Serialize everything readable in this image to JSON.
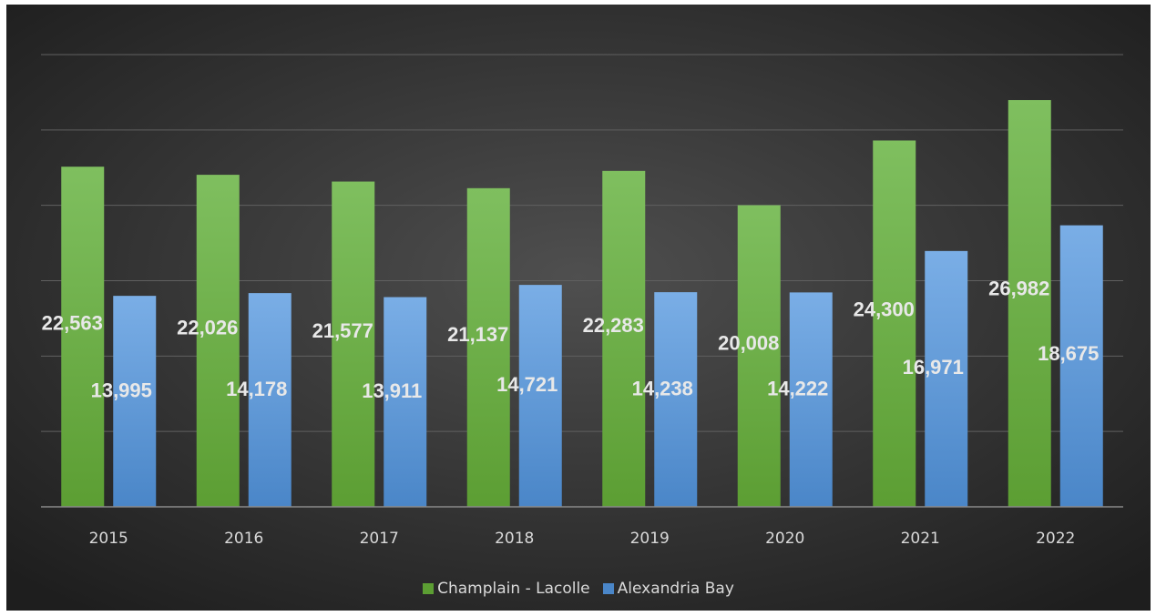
{
  "colors": {
    "background_center": "#4f4f4f",
    "background_edge": "#1e1e1e",
    "gridline": "#606060",
    "axis_line": "#8a8a8a",
    "tick_text": "#d9d9d9",
    "data_label": "#e8e8e8",
    "series1_top": "#7fbf5f",
    "series1_bottom": "#5c9e33",
    "series2_top": "#7aaee6",
    "series2_bottom": "#4a86c8"
  },
  "chart_data": {
    "type": "bar",
    "categories": [
      "2015",
      "2016",
      "2017",
      "2018",
      "2019",
      "2020",
      "2021",
      "2022"
    ],
    "series": [
      {
        "name": "Champlain - Lacolle",
        "values": [
          22563,
          22026,
          21577,
          21137,
          22283,
          20008,
          24300,
          26982
        ],
        "labels": [
          "22,563",
          "22,026",
          "21,577",
          "21,137",
          "22,283",
          "20,008",
          "24,300",
          "26,982"
        ]
      },
      {
        "name": "Alexandria Bay",
        "values": [
          13995,
          14178,
          13911,
          14721,
          14238,
          14222,
          16971,
          18675
        ],
        "labels": [
          "13,995",
          "14,178",
          "13,911",
          "14,721",
          "14,238",
          "14,222",
          "16,971",
          "18,675"
        ]
      }
    ],
    "ylim": [
      0,
      30000
    ],
    "grid": true,
    "legend_position": "bottom"
  }
}
